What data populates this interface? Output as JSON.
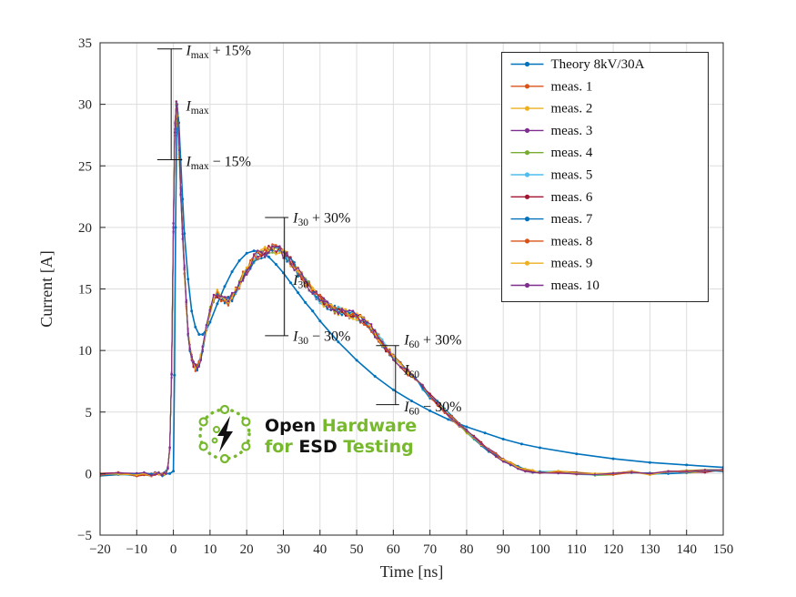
{
  "figure": {
    "background": "#ffffff"
  },
  "chart_data": {
    "type": "line",
    "title": "",
    "xlabel": "Time [ns]",
    "ylabel": "Current [A]",
    "xlim": [
      -20,
      150
    ],
    "ylim": [
      -5,
      35
    ],
    "xticks": [
      -20,
      -10,
      0,
      10,
      20,
      30,
      40,
      50,
      60,
      70,
      80,
      90,
      100,
      110,
      120,
      130,
      140,
      150
    ],
    "yticks": [
      -5,
      0,
      5,
      10,
      15,
      20,
      25,
      30,
      35
    ],
    "grid": true,
    "grid_color": "#dddddd",
    "axis_color": "#262626",
    "legend_position": "top-right",
    "series": [
      {
        "name": "Theory 8kV/30A",
        "color": "#0072BD",
        "kind": "theory",
        "x": [
          -20,
          -10,
          -5,
          -2,
          -1,
          0,
          0.3,
          0.6,
          1,
          1.5,
          2,
          2.5,
          3,
          4,
          5,
          6,
          7,
          8,
          9,
          10,
          12,
          14,
          16,
          18,
          20,
          22,
          24,
          26,
          28,
          30,
          32,
          34,
          36,
          38,
          40,
          45,
          50,
          55,
          60,
          65,
          70,
          75,
          80,
          85,
          90,
          95,
          100,
          110,
          120,
          130,
          140,
          150
        ],
        "y": [
          0,
          0,
          0,
          0,
          0,
          0.2,
          8,
          20,
          30,
          28.5,
          25.5,
          22.3,
          19.5,
          15.8,
          13.2,
          11.9,
          11.3,
          11.3,
          11.7,
          12.3,
          13.8,
          15.2,
          16.4,
          17.3,
          17.9,
          18.1,
          18.0,
          17.6,
          17.0,
          16.3,
          15.5,
          14.7,
          13.9,
          13.2,
          12.4,
          10.7,
          9.2,
          7.9,
          6.8,
          5.9,
          5.1,
          4.4,
          3.8,
          3.3,
          2.8,
          2.4,
          2.1,
          1.6,
          1.2,
          0.9,
          0.7,
          0.5
        ]
      },
      {
        "name": "meas. 1",
        "color": "#D95319",
        "kind": "replicate",
        "seed": 1
      },
      {
        "name": "meas. 2",
        "color": "#EDB120",
        "kind": "replicate",
        "seed": 2
      },
      {
        "name": "meas. 3",
        "color": "#7E2F8E",
        "kind": "replicate",
        "seed": 3
      },
      {
        "name": "meas. 4",
        "color": "#77AC30",
        "kind": "replicate",
        "seed": 4
      },
      {
        "name": "meas. 5",
        "color": "#4DBEEE",
        "kind": "replicate",
        "seed": 5
      },
      {
        "name": "meas. 6",
        "color": "#A2142F",
        "kind": "replicate",
        "seed": 6
      },
      {
        "name": "meas. 7",
        "color": "#0072BD",
        "kind": "replicate",
        "seed": 7
      },
      {
        "name": "meas. 8",
        "color": "#D95319",
        "kind": "replicate",
        "seed": 8
      },
      {
        "name": "meas. 9",
        "color": "#EDB120",
        "kind": "replicate",
        "seed": 9
      },
      {
        "name": "meas. 10",
        "color": "#7E2F8E",
        "kind": "replicate",
        "seed": 10
      }
    ],
    "measurement_base": {
      "x": [
        -20,
        -15,
        -10,
        -8,
        -6,
        -5,
        -4,
        -3,
        -2.5,
        -2,
        -1.5,
        -1,
        -0.5,
        0,
        0.4,
        0.8,
        1.2,
        1.6,
        2,
        2.5,
        3,
        3.5,
        4,
        4.5,
        5,
        5.5,
        6,
        6.5,
        7,
        7.5,
        8,
        9,
        10,
        11,
        12,
        13,
        14,
        15,
        16,
        17,
        18,
        19,
        20,
        21,
        22,
        23,
        24,
        25,
        26,
        27,
        28,
        29,
        30,
        31,
        32,
        33,
        34,
        35,
        36,
        37,
        38,
        39,
        40,
        41,
        42,
        43,
        44,
        45,
        46,
        47,
        48,
        49,
        50,
        51,
        52,
        53,
        54,
        55,
        56,
        57,
        58,
        59,
        60,
        62,
        64,
        66,
        68,
        70,
        72,
        74,
        76,
        78,
        80,
        82,
        84,
        86,
        88,
        90,
        92,
        94,
        96,
        98,
        100,
        105,
        110,
        115,
        120,
        125,
        130,
        135,
        140,
        145,
        150
      ],
      "y": [
        -0.1,
        0,
        -0.1,
        0,
        -0.1,
        0,
        0,
        -0.1,
        0,
        0.1,
        0.5,
        2,
        8,
        20,
        28,
        29.8,
        28.5,
        26,
        23,
        19.5,
        16.5,
        13.8,
        11.5,
        10.2,
        9.4,
        8.9,
        8.6,
        8.6,
        8.9,
        9.4,
        10.2,
        11.8,
        13.2,
        14.3,
        14.6,
        14.3,
        14,
        14,
        14.3,
        14.8,
        15.4,
        16,
        16.5,
        17,
        17.4,
        17.7,
        17.9,
        18,
        18.1,
        18.2,
        18.2,
        18.1,
        17.9,
        17.6,
        17.2,
        16.8,
        16.4,
        16,
        15.6,
        15.2,
        14.8,
        14.5,
        14.2,
        13.9,
        13.7,
        13.5,
        13.3,
        13.2,
        13.1,
        13,
        12.95,
        12.9,
        12.8,
        12.6,
        12.4,
        12.1,
        11.8,
        11.4,
        11,
        10.6,
        10.2,
        9.9,
        9.5,
        8.9,
        8.2,
        7.6,
        7,
        6.3,
        5.7,
        5.1,
        4.5,
        3.9,
        3.4,
        2.9,
        2.4,
        1.9,
        1.5,
        1.1,
        0.8,
        0.5,
        0.3,
        0.2,
        0.15,
        0.1,
        0,
        -0.1,
        0,
        0.1,
        0,
        0.1,
        0.15,
        0.2,
        0.25
      ]
    },
    "error_bars": [
      {
        "id": "imax",
        "x": -0.6,
        "cap_from": -4.4,
        "cap_to": 2.4,
        "top": 34.5,
        "bottom": 25.5,
        "labels": [
          {
            "pre": "I",
            "sub": "max",
            "post": " + 15%",
            "x": 2.7,
            "y": 34.4
          },
          {
            "pre": "I",
            "sub": "max",
            "post": "",
            "x": 2.7,
            "y": 29.9
          },
          {
            "pre": "I",
            "sub": "max",
            "post": " − 15%",
            "x": 2.7,
            "y": 25.4
          }
        ]
      },
      {
        "id": "i30",
        "x": 30.3,
        "cap_from": 25.0,
        "cap_to": 31.4,
        "top": 20.8,
        "bottom": 11.2,
        "labels": [
          {
            "pre": "I",
            "sub": "30",
            "post": " + 30%",
            "x": 31.9,
            "y": 20.8
          },
          {
            "pre": "I",
            "sub": "30",
            "post": "",
            "x": 31.9,
            "y": 15.75
          },
          {
            "pre": "I",
            "sub": "30",
            "post": " − 30%",
            "x": 31.9,
            "y": 11.2
          }
        ]
      },
      {
        "id": "i60",
        "x": 60.6,
        "cap_from": 55.3,
        "cap_to": 61.6,
        "top": 10.4,
        "bottom": 5.6,
        "labels": [
          {
            "pre": "I",
            "sub": "60",
            "post": " + 30%",
            "x": 62.2,
            "y": 10.9
          },
          {
            "pre": "I",
            "sub": "60",
            "post": "",
            "x": 62.2,
            "y": 8.45
          },
          {
            "pre": "I",
            "sub": "60",
            "post": " − 30%",
            "x": 62.2,
            "y": 5.45
          }
        ]
      }
    ]
  },
  "logo": {
    "green": "#77B82E",
    "black": "#111111",
    "line1": [
      {
        "t": "Open ",
        "c": "#111111"
      },
      {
        "t": "Hardware",
        "c": "#77B82E"
      }
    ],
    "line2": [
      {
        "t": "for ",
        "c": "#77B82E"
      },
      {
        "t": "ESD ",
        "c": "#111111"
      },
      {
        "t": "Testing",
        "c": "#77B82E"
      }
    ]
  }
}
